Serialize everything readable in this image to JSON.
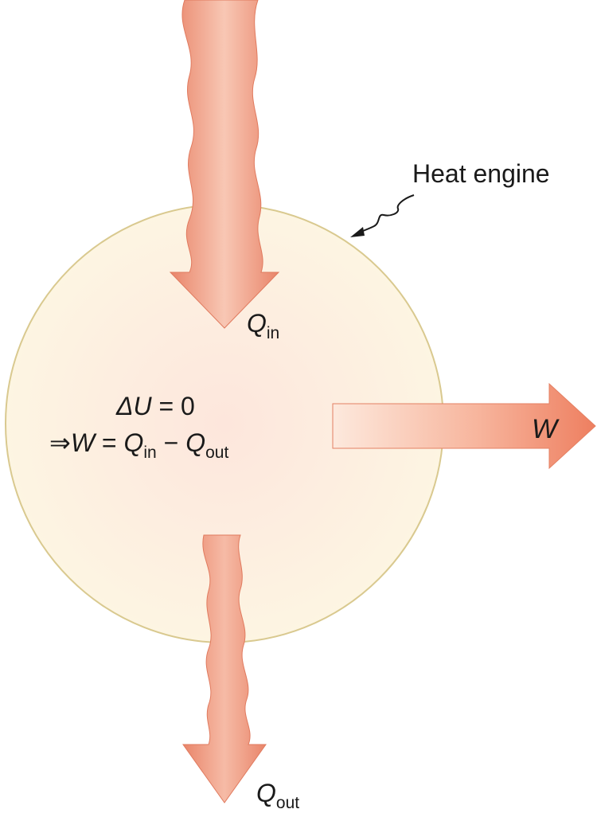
{
  "labels": {
    "heat_engine": "Heat engine",
    "q_in_symbol": "Q",
    "q_in_subscript": "in",
    "q_out_symbol": "Q",
    "q_out_subscript": "out",
    "work_symbol": "W"
  },
  "equations": {
    "line1": {
      "delta": "ΔU",
      "rest": " = 0"
    },
    "line2": {
      "implies": "⇒",
      "w": "W",
      "eq": " = ",
      "q1": "Q",
      "q1_sub": "in",
      "minus": " − ",
      "q2": "Q",
      "q2_sub": "out"
    }
  },
  "colors": {
    "arrow_fill": "#f08a6a",
    "arrow_light": "#fde3d8",
    "engine_fill": "#fdf6e3",
    "engine_center": "#fde9de",
    "engine_stroke": "#d9c98f"
  }
}
